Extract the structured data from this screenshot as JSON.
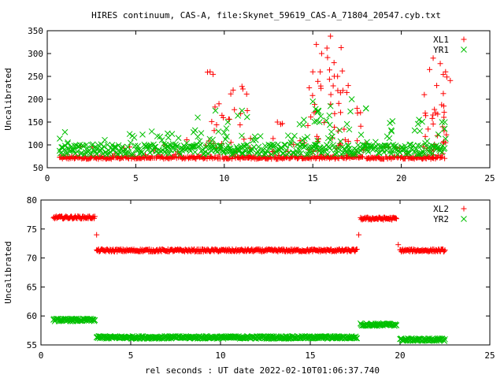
{
  "title": "HIRES continuum, CAS-A, file:Skynet_59619_CAS-A_71804_20547.cyb.txt",
  "xlabel": "rel seconds : UT date 2022-02-10T01:06:37.740",
  "colors": {
    "red": "#ff0000",
    "green": "#00c000",
    "axis": "#000000"
  },
  "chart_data": [
    {
      "type": "scatter",
      "ylabel": "Uncalibrated",
      "xlim": [
        0,
        25
      ],
      "ylim": [
        50,
        350
      ],
      "xticks": [
        0,
        5,
        10,
        15,
        20,
        25
      ],
      "yticks": [
        50,
        100,
        150,
        200,
        250,
        300,
        350
      ],
      "legend_position": "top-right",
      "series": [
        {
          "name": "XL1",
          "marker": "plus",
          "color": "#ff0000",
          "x_range": [
            0.7,
            22.5
          ],
          "baseline": 72,
          "spikes": [
            {
              "x": 9.2,
              "y": 260
            },
            {
              "x": 9.7,
              "y": 190
            },
            {
              "x": 10.5,
              "y": 220
            },
            {
              "x": 11.0,
              "y": 228
            },
            {
              "x": 11.3,
              "y": 175
            },
            {
              "x": 13.0,
              "y": 150
            },
            {
              "x": 14.8,
              "y": 225
            },
            {
              "x": 15.0,
              "y": 260
            },
            {
              "x": 15.2,
              "y": 320
            },
            {
              "x": 15.5,
              "y": 300
            },
            {
              "x": 15.8,
              "y": 312
            },
            {
              "x": 16.0,
              "y": 338
            },
            {
              "x": 16.2,
              "y": 280
            },
            {
              "x": 16.4,
              "y": 250
            },
            {
              "x": 16.6,
              "y": 313
            },
            {
              "x": 17.0,
              "y": 230
            },
            {
              "x": 17.5,
              "y": 180
            },
            {
              "x": 21.3,
              "y": 210
            },
            {
              "x": 21.6,
              "y": 265
            },
            {
              "x": 21.8,
              "y": 290
            },
            {
              "x": 22.0,
              "y": 230
            },
            {
              "x": 22.2,
              "y": 278
            },
            {
              "x": 22.5,
              "y": 260
            },
            {
              "x": 22.4,
              "y": 185
            }
          ]
        },
        {
          "name": "YR1",
          "marker": "cross",
          "color": "#00c000",
          "x_range": [
            0.7,
            22.5
          ],
          "baseline": 90,
          "spikes": [
            {
              "x": 1.0,
              "y": 128
            },
            {
              "x": 6.8,
              "y": 125
            },
            {
              "x": 8.5,
              "y": 160
            },
            {
              "x": 9.5,
              "y": 175
            },
            {
              "x": 10.2,
              "y": 150
            },
            {
              "x": 11.0,
              "y": 175
            },
            {
              "x": 14.5,
              "y": 155
            },
            {
              "x": 15.0,
              "y": 195
            },
            {
              "x": 15.3,
              "y": 175
            },
            {
              "x": 16.0,
              "y": 185
            },
            {
              "x": 17.2,
              "y": 200
            },
            {
              "x": 18.0,
              "y": 180
            },
            {
              "x": 19.5,
              "y": 152
            },
            {
              "x": 21.0,
              "y": 155
            },
            {
              "x": 22.3,
              "y": 150
            }
          ]
        }
      ]
    },
    {
      "type": "scatter",
      "ylabel": "Uncalibrated",
      "xlim": [
        0,
        25
      ],
      "ylim": [
        55,
        80
      ],
      "xticks": [
        0,
        5,
        10,
        15,
        20,
        25
      ],
      "yticks": [
        55,
        60,
        65,
        70,
        75,
        80
      ],
      "legend_position": "top-right",
      "series": [
        {
          "name": "XL2",
          "marker": "plus",
          "color": "#ff0000",
          "segments": [
            {
              "x": [
                0.7,
                3.0
              ],
              "y": 77.0
            },
            {
              "x": 3.1,
              "y": 74.0
            },
            {
              "x": [
                3.1,
                17.6
              ],
              "y": 71.3
            },
            {
              "x": 17.7,
              "y": 74.0
            },
            {
              "x": [
                17.8,
                19.8
              ],
              "y": 76.8
            },
            {
              "x": 19.9,
              "y": 72.3
            },
            {
              "x": [
                20.0,
                22.5
              ],
              "y": 71.3
            }
          ]
        },
        {
          "name": "YR2",
          "marker": "cross",
          "color": "#00c000",
          "segments": [
            {
              "x": [
                0.7,
                3.0
              ],
              "y": 59.3
            },
            {
              "x": [
                3.1,
                17.6
              ],
              "y": 56.3
            },
            {
              "x": [
                17.8,
                19.8
              ],
              "y": 58.5
            },
            {
              "x": [
                20.0,
                22.5
              ],
              "y": 55.9
            }
          ]
        }
      ]
    }
  ]
}
